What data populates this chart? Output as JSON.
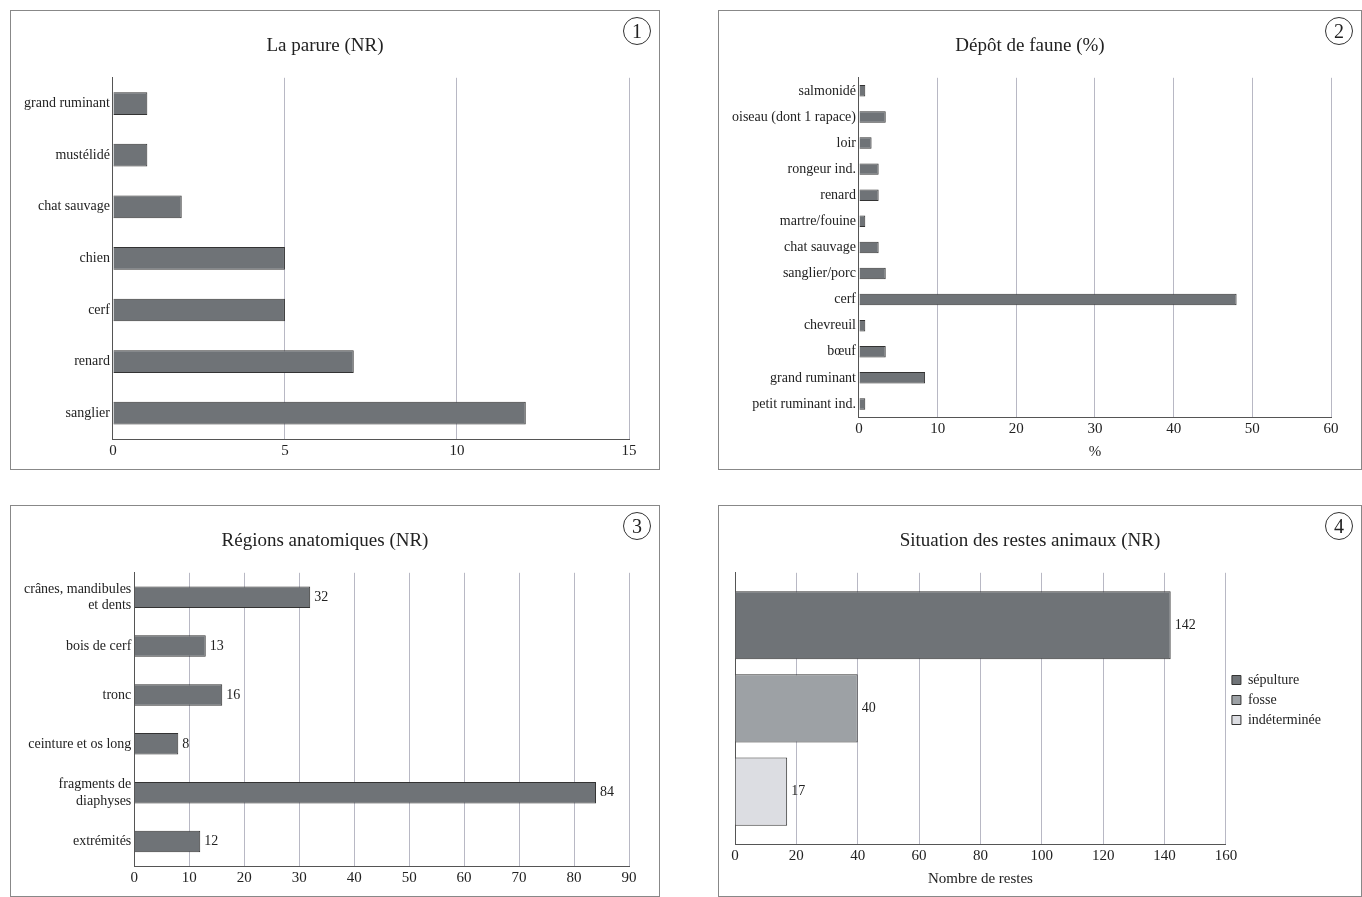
{
  "chart_data": [
    {
      "type": "bar",
      "orientation": "horizontal",
      "title": "La parure (NR)",
      "annotations": [
        "1"
      ],
      "categories": [
        "grand ruminant",
        "mustélidé",
        "chat sauvage",
        "chien",
        "cerf",
        "renard",
        "sanglier"
      ],
      "values": [
        1,
        1,
        2,
        5,
        5,
        7,
        12
      ],
      "color": "#6f7377",
      "xlim": [
        0,
        15
      ],
      "xticks": [
        0,
        5,
        10,
        15
      ],
      "grid": "x"
    },
    {
      "type": "bar",
      "orientation": "horizontal",
      "title": "Dépôt de faune (%)",
      "xlabel": "%",
      "annotations": [
        "2"
      ],
      "categories": [
        "salmonidé",
        "oiseau (dont 1 rapace)",
        "loir",
        "rongeur ind.",
        "renard",
        "martre/fouine",
        "chat sauvage",
        "sanglier/porc",
        "cerf",
        "chevreuil",
        "bœuf",
        "grand ruminant",
        "petit ruminant ind."
      ],
      "values": [
        0.8,
        3.4,
        1.6,
        2.5,
        2.5,
        0.8,
        2.5,
        3.4,
        48,
        0.8,
        3.4,
        8.4,
        0.8
      ],
      "color": "#6f7377",
      "xlim": [
        0,
        60
      ],
      "xticks": [
        0,
        10,
        20,
        30,
        40,
        50,
        60
      ],
      "grid": "x"
    },
    {
      "type": "bar",
      "orientation": "horizontal",
      "title": "Régions anatomiques (NR)",
      "annotations": [
        "3"
      ],
      "categories": [
        "crânes, mandibules\net dents",
        "bois de cerf",
        "tronc",
        "ceinture et os long",
        "fragments de\ndiaphyses",
        "extrémités"
      ],
      "values": [
        32,
        13,
        16,
        8,
        84,
        12
      ],
      "color": "#6f7377",
      "data_labels": true,
      "xlim": [
        0,
        90
      ],
      "xticks": [
        0,
        10,
        20,
        30,
        40,
        50,
        60,
        70,
        80,
        90
      ],
      "grid": "x"
    },
    {
      "type": "bar",
      "orientation": "horizontal",
      "title": "Situation des restes animaux (NR)",
      "xlabel": "Nombre de restes",
      "annotations": [
        "4"
      ],
      "categories": [
        null
      ],
      "series": [
        {
          "name": "sépulture",
          "color": "#6f7377",
          "values": [
            142
          ]
        },
        {
          "name": "fosse",
          "color": "#9da1a5",
          "values": [
            40
          ]
        },
        {
          "name": "indéterminée",
          "color": "#dcdde2",
          "values": [
            17
          ]
        }
      ],
      "data_labels": true,
      "legend": "right",
      "xlim": [
        0,
        160
      ],
      "xticks": [
        0,
        20,
        40,
        60,
        80,
        100,
        120,
        140,
        160
      ],
      "grid": "x"
    }
  ]
}
